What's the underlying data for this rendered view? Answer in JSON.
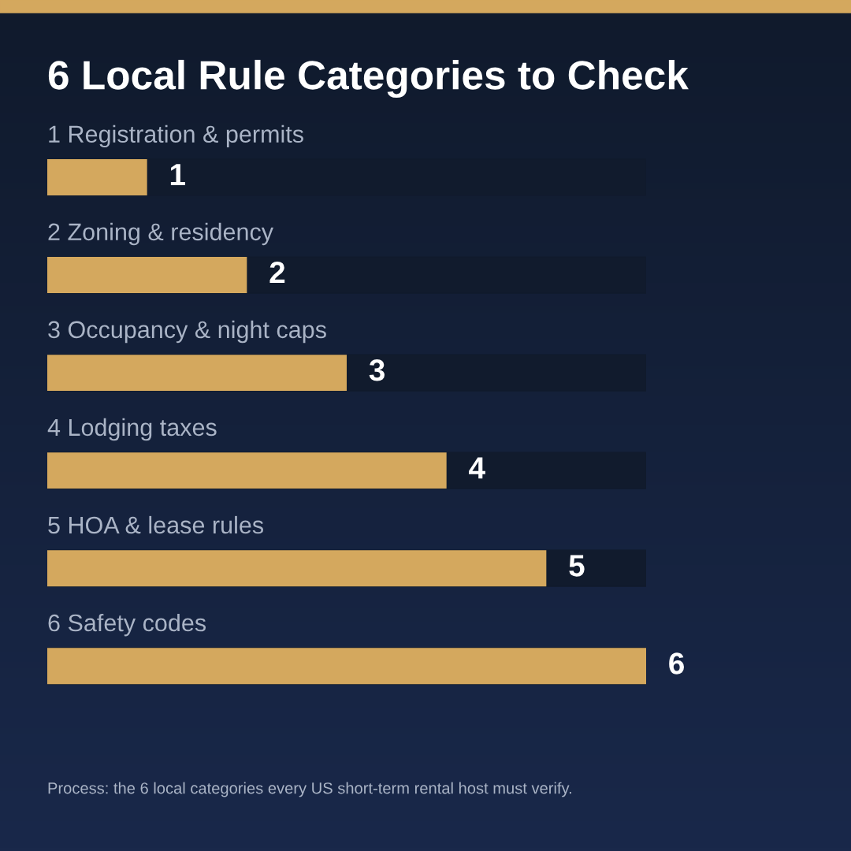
{
  "chart_data": {
    "type": "bar",
    "orientation": "horizontal",
    "title": "6 Local Rule Categories to Check",
    "categories": [
      "1 Registration & permits",
      "2 Zoning & residency",
      "3 Occupancy & night caps",
      "4 Lodging taxes",
      "5 HOA & lease rules",
      "6 Safety codes"
    ],
    "values": [
      1,
      2,
      3,
      4,
      5,
      6
    ],
    "color": "#d4a85e",
    "data_labels": true,
    "tick_labels": false,
    "grid": false,
    "annotations": [
      "Process: the 6 local categories every US short-term rental host must verify."
    ]
  }
}
